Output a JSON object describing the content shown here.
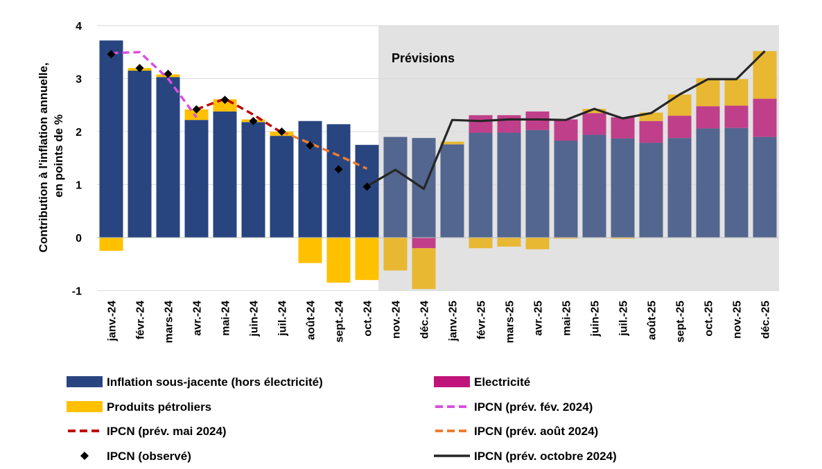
{
  "chart_data": {
    "type": "bar",
    "ylabel_lines": [
      "Contribution à l'inflation annuelle,",
      "en points de %"
    ],
    "ylim": [
      -1,
      4
    ],
    "yticks": [
      -1,
      0,
      1,
      2,
      3,
      4
    ],
    "grid": true,
    "forecast_label": "Prévisions",
    "forecast_start_index": 10,
    "categories": [
      "janv.-24",
      "févr.-24",
      "mars-24",
      "avr.-24",
      "mai-24",
      "juin-24",
      "juil.-24",
      "août-24",
      "sept.-24",
      "oct.-24",
      "nov.-24",
      "déc.-24",
      "janv.-25",
      "févr.-25",
      "mars-25",
      "avr.-25",
      "mai-25",
      "juin-25",
      "juil.-25",
      "août-25",
      "sept.-25",
      "oct.-25",
      "nov.-25",
      "déc.-25"
    ],
    "colors": {
      "core": "#284580",
      "core_forecast": "#52668f",
      "electricity": "#c0147a",
      "electricity_forecast": "#c03f8a",
      "petroleum": "#ffc000",
      "petroleum_forecast": "#e8b832",
      "forecast_bg": "#e2e2e2",
      "prev_feb": "#d94fe0",
      "prev_may": "#c00000",
      "prev_aug": "#ed7d31",
      "prev_oct": "#262626",
      "observed": "#000000"
    },
    "series": [
      {
        "name": "Inflation sous-jacente (hors électricité)",
        "key": "core",
        "values": [
          3.72,
          3.15,
          3.03,
          2.22,
          2.38,
          2.18,
          1.92,
          2.2,
          2.14,
          1.75,
          1.9,
          1.88,
          1.76,
          1.98,
          1.98,
          2.03,
          1.83,
          1.94,
          1.87,
          1.79,
          1.88,
          2.06,
          2.07,
          1.9
        ]
      },
      {
        "name": "Electricité",
        "key": "electricity",
        "values": [
          0,
          0,
          0,
          0,
          0,
          0,
          0,
          0,
          0,
          0,
          0,
          -0.2,
          0,
          0.33,
          0.33,
          0.35,
          0.4,
          0.41,
          0.4,
          0.41,
          0.42,
          0.42,
          0.42,
          0.72
        ]
      },
      {
        "name": "Produits pétroliers",
        "key": "petroleum",
        "values": [
          -0.25,
          0.05,
          0.05,
          0.2,
          0.23,
          0.05,
          0.08,
          -0.48,
          -0.85,
          -0.8,
          -0.62,
          -0.77,
          0.05,
          -0.2,
          -0.17,
          -0.22,
          -0.02,
          0.08,
          -0.02,
          0.16,
          0.4,
          0.53,
          0.5,
          0.9
        ]
      }
    ],
    "lines": [
      {
        "name": "IPCN (prév. fév. 2024)",
        "key": "prev_feb",
        "style": "dashed",
        "x_index": [
          0,
          1,
          2,
          3
        ],
        "values": [
          3.48,
          3.5,
          3.0,
          2.27
        ]
      },
      {
        "name": "IPCN (prév. mai 2024)",
        "key": "prev_may",
        "style": "dashed",
        "x_index": [
          3,
          4,
          5,
          6
        ],
        "values": [
          2.42,
          2.62,
          2.32,
          1.98
        ]
      },
      {
        "name": "IPCN (prév. août 2024)",
        "key": "prev_aug",
        "style": "dashed",
        "x_index": [
          6,
          7,
          8,
          9
        ],
        "values": [
          2.0,
          1.78,
          1.55,
          1.3
        ]
      },
      {
        "name": "IPCN (prév. octobre 2024)",
        "key": "prev_oct",
        "style": "solid",
        "x_index": [
          9,
          10,
          11,
          12,
          13,
          14,
          15,
          16,
          17,
          18,
          19,
          20,
          21,
          22,
          23
        ],
        "values": [
          0.97,
          1.28,
          0.92,
          2.22,
          2.2,
          2.23,
          2.23,
          2.22,
          2.43,
          2.25,
          2.35,
          2.7,
          2.99,
          2.99,
          3.52
        ]
      }
    ],
    "observed": {
      "name": "IPCN (observé)",
      "key": "observed",
      "x_index": [
        0,
        1,
        2,
        3,
        4,
        5,
        6,
        7,
        8,
        9
      ],
      "values": [
        3.46,
        3.2,
        3.09,
        2.42,
        2.6,
        2.2,
        2.0,
        1.74,
        1.29,
        0.96
      ]
    },
    "legend": {
      "placement": "bottom",
      "items": [
        {
          "label": "Inflation sous-jacente (hors électricité)",
          "kind": "rect",
          "color_key": "core"
        },
        {
          "label": "Electricité",
          "kind": "rect",
          "color_key": "electricity"
        },
        {
          "label": "Produits pétroliers",
          "kind": "rect",
          "color_key": "petroleum"
        },
        {
          "label": "IPCN (prév. fév. 2024)",
          "kind": "dash",
          "color_key": "prev_feb"
        },
        {
          "label": "IPCN (prév. mai 2024)",
          "kind": "dash",
          "color_key": "prev_may"
        },
        {
          "label": "IPCN (prév. août 2024)",
          "kind": "dash",
          "color_key": "prev_aug"
        },
        {
          "label": "IPCN (observé)",
          "kind": "diamond",
          "color_key": "observed"
        },
        {
          "label": "IPCN (prév. octobre 2024)",
          "kind": "line",
          "color_key": "prev_oct"
        }
      ]
    }
  }
}
